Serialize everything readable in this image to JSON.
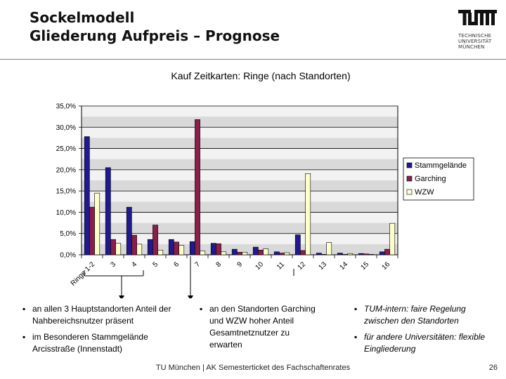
{
  "slide": {
    "title_line1": "Sockelmodell",
    "title_line2": "Gliederung Aufpreis – Prognose",
    "logo_text_lines": [
      "TECHNISCHE",
      "UNIVERSITÄT",
      "MÜNCHEN"
    ]
  },
  "chart_data": {
    "type": "bar",
    "title": "Kauf Zeitkarten: Ringe (nach Standorten)",
    "xlabel": "",
    "ylabel": "",
    "ylim": [
      0,
      35
    ],
    "yticks": [
      "0,0%",
      "5,0%",
      "10,0%",
      "15,0%",
      "20,0%",
      "25,0%",
      "30,0%",
      "35,0%"
    ],
    "categories": [
      "Ringe 1-2",
      "3",
      "4",
      "5",
      "6",
      "7",
      "8",
      "9",
      "10",
      "11",
      "12",
      "13",
      "14",
      "15",
      "16"
    ],
    "series": [
      {
        "name": "Stammgelände",
        "color": "#1f1a8f",
        "values": [
          27.8,
          20.5,
          11.2,
          3.6,
          3.6,
          3.1,
          2.7,
          1.3,
          1.8,
          0.7,
          4.7,
          0.4,
          0.4,
          0.3,
          0.7
        ]
      },
      {
        "name": "Garching",
        "color": "#8b1e4a",
        "values": [
          11.2,
          3.6,
          4.6,
          7.0,
          3.0,
          31.8,
          2.6,
          0.6,
          1.1,
          0.4,
          1.0,
          0.1,
          0.1,
          0.2,
          1.3
        ]
      },
      {
        "name": "WZW",
        "color": "#ffffcc",
        "values": [
          14.5,
          2.7,
          2.5,
          1.1,
          2.2,
          0.9,
          0.7,
          0.6,
          1.4,
          0.5,
          19.1,
          2.9,
          0.3,
          0.1,
          7.4
        ]
      }
    ],
    "grid": true,
    "legend_position": "right"
  },
  "bullets": {
    "col1": [
      "an allen 3 Hauptstandorten Anteil der Nahbereichsnutzer präsent",
      "im Besonderen Stammgelände Arcisstraße (Innenstadt)"
    ],
    "col2": [
      "an den Standorten Garching und WZW hoher Anteil Gesamtnetznutzer zu erwarten"
    ],
    "col3": [
      "TUM-intern: faire Regelung zwischen den Standorten",
      "für andere Universitäten: flexible Eingliederung"
    ]
  },
  "footer": {
    "text": "TU München | AK Semesterticket des Fachschaftenrates",
    "page_number": "26"
  }
}
